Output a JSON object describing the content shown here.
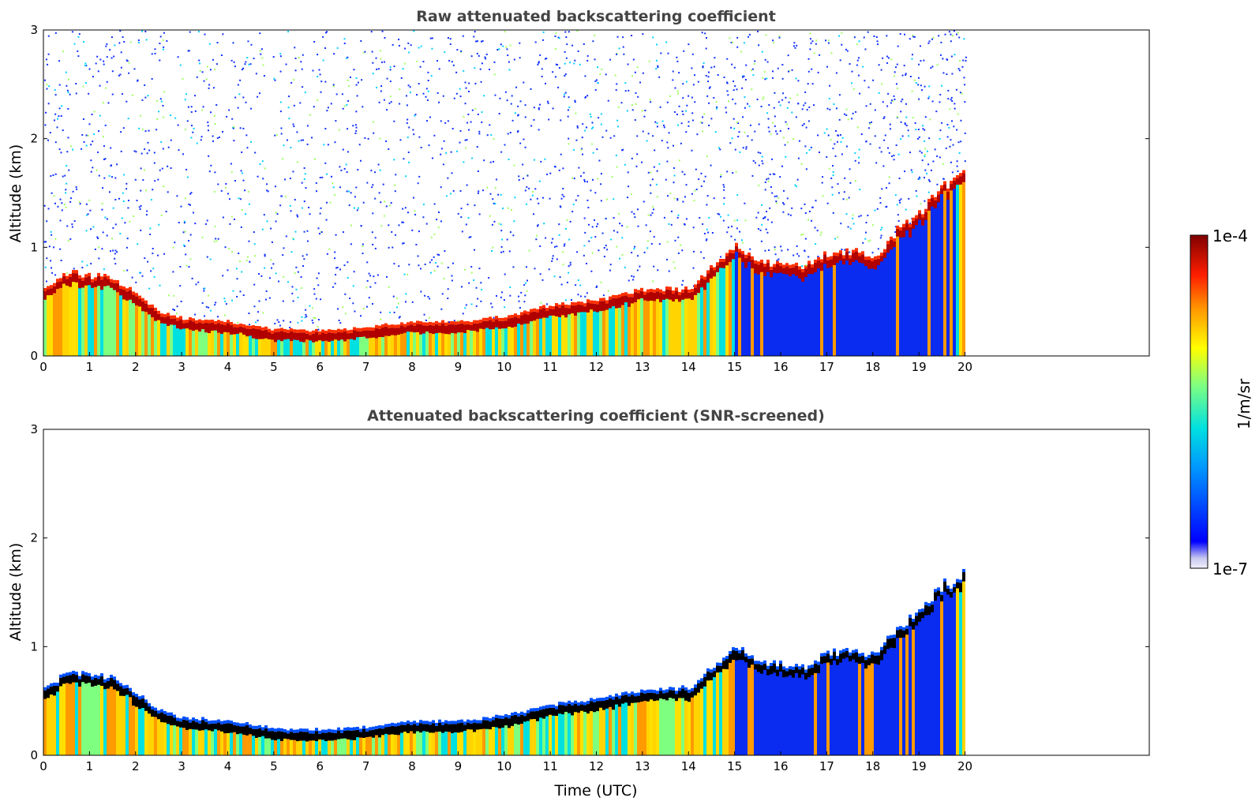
{
  "chart_data": [
    {
      "type": "heatmap",
      "title": "Raw attenuated backscattering coefficient",
      "xlabel": "",
      "ylabel": "Altitude (km)",
      "xlim": [
        0,
        24
      ],
      "ylim": [
        0,
        3
      ],
      "x_ticks": [
        "0",
        "1",
        "2",
        "3",
        "4",
        "5",
        "6",
        "7",
        "8",
        "9",
        "10",
        "11",
        "12",
        "13",
        "14",
        "15",
        "16",
        "17",
        "18",
        "19",
        "20"
      ],
      "y_ticks": [
        "0",
        "1",
        "2",
        "3"
      ],
      "data_time_range": [
        0,
        20
      ],
      "layer_top_km": [
        [
          0,
          0.55
        ],
        [
          0.5,
          0.7
        ],
        [
          1,
          0.68
        ],
        [
          1.5,
          0.65
        ],
        [
          2,
          0.5
        ],
        [
          2.5,
          0.35
        ],
        [
          3,
          0.28
        ],
        [
          4,
          0.25
        ],
        [
          5,
          0.18
        ],
        [
          6,
          0.17
        ],
        [
          7,
          0.2
        ],
        [
          8,
          0.25
        ],
        [
          9,
          0.25
        ],
        [
          10,
          0.3
        ],
        [
          11,
          0.4
        ],
        [
          12,
          0.45
        ],
        [
          13,
          0.55
        ],
        [
          14,
          0.55
        ],
        [
          14.5,
          0.75
        ],
        [
          15,
          0.95
        ],
        [
          15.5,
          0.8
        ],
        [
          16,
          0.78
        ],
        [
          16.5,
          0.75
        ],
        [
          17,
          0.88
        ],
        [
          17.5,
          0.9
        ],
        [
          18,
          0.85
        ],
        [
          18.5,
          1.1
        ],
        [
          19,
          1.25
        ],
        [
          19.5,
          1.5
        ],
        [
          20,
          1.6
        ]
      ],
      "grid": false
    },
    {
      "type": "heatmap",
      "title": "Attenuated backscattering coefficient (SNR-screened)",
      "xlabel": "Time (UTC)",
      "ylabel": "Altitude (km)",
      "xlim": [
        0,
        24
      ],
      "ylim": [
        0,
        3
      ],
      "x_ticks": [
        "0",
        "1",
        "2",
        "3",
        "4",
        "5",
        "6",
        "7",
        "8",
        "9",
        "10",
        "11",
        "12",
        "13",
        "14",
        "15",
        "16",
        "17",
        "18",
        "19",
        "20"
      ],
      "y_ticks": [
        "0",
        "1",
        "2",
        "3"
      ],
      "data_time_range": [
        0,
        20
      ],
      "grid": false
    }
  ],
  "colorbar": {
    "label": "1/m/sr",
    "max_label": "1e-4",
    "min_label": "1e-7",
    "colormap": "jet",
    "colors": [
      "#e8e8f8",
      "#0000ff",
      "#00c8ff",
      "#7fff7f",
      "#ffff00",
      "#ff7f00",
      "#ff0000",
      "#800000"
    ]
  }
}
